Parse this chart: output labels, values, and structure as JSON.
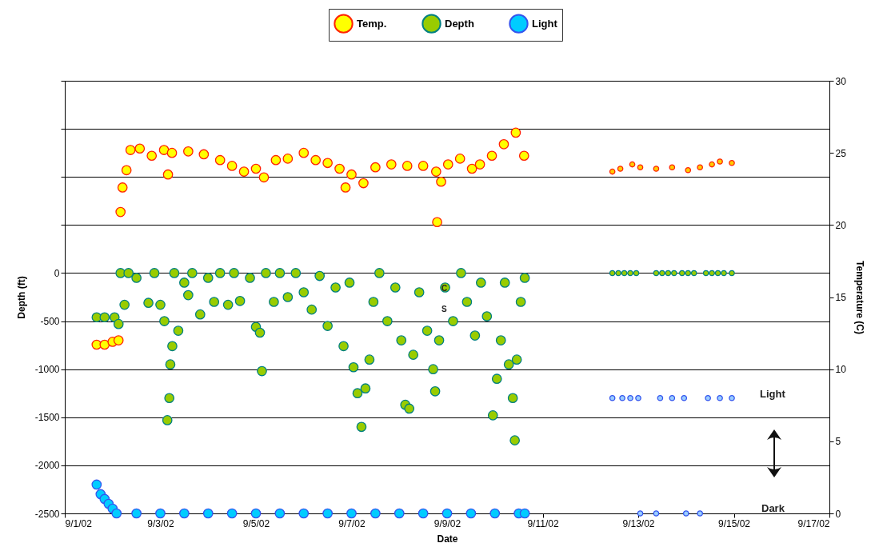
{
  "chart_data": {
    "type": "scatter",
    "xlabel": "Date",
    "ylabel": "Depth (ft)",
    "y2label": "Temperature (C)",
    "xlim": [
      "--09-01",
      "--09-17"
    ],
    "xticks": [
      {
        "value": "--09-01",
        "label": "9/1/02"
      },
      {
        "value": "--09-03",
        "label": "9/3/02"
      },
      {
        "value": "--09-05",
        "label": "9/5/02"
      },
      {
        "value": "--09-07",
        "label": "9/7/02"
      },
      {
        "value": "--09-09",
        "label": "9/9/02"
      },
      {
        "value": "--09-11",
        "label": "9/11/02"
      },
      {
        "value": "--09-13",
        "label": "9/13/02"
      },
      {
        "value": "--09-15",
        "label": "9/15/02"
      },
      {
        "value": "--09-17",
        "label": "9/17/02"
      }
    ],
    "ylim": [
      -2500,
      2000
    ],
    "yticks": [
      -2500,
      -2000,
      -1500,
      -1000,
      -500,
      0,
      {
        "value": 500,
        "label": null
      },
      {
        "value": 1000,
        "label": null
      },
      {
        "value": 1500,
        "label": null
      },
      {
        "value": 2000,
        "label": null
      }
    ],
    "y2lim": [
      0,
      30
    ],
    "y2ticks": [
      0,
      5,
      10,
      15,
      20,
      25,
      30
    ],
    "grid": "y",
    "legend": "top",
    "marker": "circle",
    "series": [
      {
        "name": "Temp.",
        "color": "#ffff00",
        "axis": "y2",
        "x": [
          "--09-01T16:00",
          "--09-01T20:00",
          "--09-02T00:00",
          "--09-02T03:00",
          "--09-02T04:00",
          "--09-02T05:00",
          "--09-02T07:00",
          "--09-02T09:00",
          "--09-02T13:40",
          "--09-02T19:40",
          "--09-03T01:50",
          "--09-03T03:50",
          "--09-03T05:50",
          "--09-03T14:00",
          "--09-03T21:50",
          "--09-04T06:00",
          "--09-04T12:00",
          "--09-04T18:00",
          "--09-05T00:00",
          "--09-05T04:00",
          "--09-05T10:00",
          "--09-05T16:00",
          "--09-06T00:00",
          "--09-06T06:00",
          "--09-06T12:00",
          "--09-06T18:00",
          "--09-06T21:00",
          "--09-07T00:00",
          "--09-07T06:00",
          "--09-07T12:00",
          "--09-07T20:00",
          "--09-08T04:00",
          "--09-08T12:00",
          "--09-08T18:30",
          "--09-08T19:00",
          "--09-08T21:00",
          "--09-09T00:30",
          "--09-09T06:30",
          "--09-09T12:30",
          "--09-09T16:30",
          "--09-09T22:30",
          "--09-10T04:30",
          "--09-10T10:30",
          "--09-10T14:40"
        ],
        "values": [
          11.7,
          11.7,
          11.9,
          12.0,
          20.9,
          22.6,
          23.8,
          25.2,
          25.3,
          24.8,
          25.2,
          23.5,
          25.0,
          25.1,
          24.9,
          24.5,
          24.1,
          23.7,
          23.9,
          23.3,
          24.5,
          24.6,
          25.0,
          24.5,
          24.3,
          23.9,
          22.6,
          23.5,
          22.9,
          24.0,
          24.2,
          24.1,
          24.1,
          23.7,
          20.2,
          23.0,
          24.2,
          24.6,
          23.9,
          24.2,
          24.8,
          25.6,
          26.4,
          24.8
        ]
      },
      {
        "color": "#ffcc00",
        "axis": "y2",
        "x": [
          "--09-12T11:00",
          "--09-12T15:00",
          "--09-12T21:00",
          "--09-13T01:00",
          "--09-13T09:00",
          "--09-13T17:00",
          "--09-14T01:00",
          "--09-14T07:00",
          "--09-14T13:00",
          "--09-14T17:00",
          "--09-14T23:00"
        ],
        "values": [
          23.7,
          23.9,
          24.2,
          24.0,
          23.9,
          24.0,
          23.8,
          24.0,
          24.2,
          24.4,
          24.3
        ]
      },
      {
        "name": "Depth",
        "color": "#99cc00",
        "x": [
          "--09-01T16:00",
          "--09-01T20:00",
          "--09-02T01:00",
          "--09-02T03:00",
          "--09-02T04:00",
          "--09-02T06:00",
          "--09-02T08:00",
          "--09-02T12:00",
          "--09-02T18:00",
          "--09-02T21:00",
          "--09-03T00:00",
          "--09-03T02:00",
          "--09-03T03:30",
          "--09-03T04:30",
          "--09-03T05:00",
          "--09-03T06:00",
          "--09-03T07:00",
          "--09-03T09:00",
          "--09-03T12:00",
          "--09-03T14:00",
          "--09-03T16:00",
          "--09-03T20:00",
          "--09-04T00:00",
          "--09-04T03:00",
          "--09-04T06:00",
          "--09-04T10:00",
          "--09-04T13:00",
          "--09-04T16:00",
          "--09-04T21:00",
          "--09-05T00:00",
          "--09-05T02:00",
          "--09-05T03:00",
          "--09-05T05:00",
          "--09-05T09:00",
          "--09-05T12:00",
          "--09-05T16:00",
          "--09-05T20:00",
          "--09-06T00:00",
          "--09-06T04:00",
          "--09-06T08:00",
          "--09-06T12:00",
          "--09-06T16:00",
          "--09-06T20:00",
          "--09-06T23:00",
          "--09-07T01:00",
          "--09-07T03:00",
          "--09-07T05:00",
          "--09-07T07:00",
          "--09-07T09:00",
          "--09-07T11:00",
          "--09-07T14:00",
          "--09-07T18:00",
          "--09-07T22:00",
          "--09-08T01:00",
          "--09-08T03:00",
          "--09-08T05:00",
          "--09-08T07:00",
          "--09-08T10:00",
          "--09-08T14:00",
          "--09-08T17:00",
          "--09-08T18:00",
          "--09-08T20:00",
          "--09-08T23:00",
          "--09-09T03:00",
          "--09-09T07:00",
          "--09-09T10:00",
          "--09-09T14:00",
          "--09-09T17:00",
          "--09-09T20:00",
          "--09-09T23:00",
          "--09-10T01:00",
          "--09-10T03:00",
          "--09-10T05:00",
          "--09-10T07:00",
          "--09-10T09:00",
          "--09-10T10:00",
          "--09-10T11:00",
          "--09-10T13:00",
          "--09-10T15:00"
        ],
        "values": [
          -460,
          -460,
          -460,
          -530,
          0,
          -330,
          0,
          -50,
          -310,
          0,
          -330,
          -500,
          -1530,
          -1300,
          -950,
          -760,
          0,
          -600,
          -100,
          -230,
          0,
          -430,
          -50,
          -300,
          0,
          -330,
          0,
          -290,
          -50,
          -560,
          -620,
          -1020,
          0,
          -300,
          0,
          -250,
          0,
          -200,
          -380,
          -30,
          -550,
          -150,
          -760,
          -100,
          -980,
          -1250,
          -1600,
          -1200,
          -900,
          -300,
          0,
          -500,
          -150,
          -700,
          -1370,
          -1410,
          -850,
          -200,
          -600,
          -1000,
          -1230,
          -700,
          -150,
          -500,
          0,
          -300,
          -650,
          -100,
          -450,
          -1480,
          -1100,
          -700,
          -100,
          -950,
          -1300,
          -1740,
          -900,
          -300,
          -50
        ]
      },
      {
        "color": "#99cc00",
        "x": [
          "--09-12T11:00",
          "--09-12T14:00",
          "--09-12T17:00",
          "--09-12T20:00",
          "--09-12T23:00",
          "--09-13T09:00",
          "--09-13T12:00",
          "--09-13T15:00",
          "--09-13T18:00",
          "--09-13T22:00",
          "--09-14T01:00",
          "--09-14T04:00",
          "--09-14T10:00",
          "--09-14T13:00",
          "--09-14T16:00",
          "--09-14T19:00",
          "--09-14T23:00"
        ],
        "values": [
          0,
          0,
          0,
          0,
          0,
          0,
          0,
          0,
          0,
          0,
          0,
          0,
          0,
          0,
          0,
          0,
          0
        ]
      },
      {
        "name": "Light",
        "color": "#00ccff",
        "x": [
          "--09-01T16:00",
          "--09-01T18:00",
          "--09-01T20:00",
          "--09-01T22:00",
          "--09-02T00:00",
          "--09-02T02:00",
          "--09-02T12:00",
          "--09-03T00:00",
          "--09-03T12:00",
          "--09-04T00:00",
          "--09-04T12:00",
          "--09-05T00:00",
          "--09-05T12:00",
          "--09-06T00:00",
          "--09-06T12:00",
          "--09-07T00:00",
          "--09-07T12:00",
          "--09-08T00:00",
          "--09-08T12:00",
          "--09-09T00:00",
          "--09-09T12:00",
          "--09-10T00:00",
          "--09-10T12:00",
          "--09-10T15:00"
        ],
        "values": [
          -2200,
          -2300,
          -2350,
          -2400,
          -2450,
          -2500,
          -2500,
          -2500,
          -2500,
          -2500,
          -2500,
          -2500,
          -2500,
          -2500,
          -2500,
          -2500,
          -2500,
          -2500,
          -2500,
          -2500,
          -2500,
          -2500,
          -2500,
          -2500
        ]
      },
      {
        "color": "#99ccff",
        "x": [
          "--09-12T11:00",
          "--09-12T16:00",
          "--09-12T20:00",
          "--09-13T00:00",
          "--09-13T01:00",
          "--09-13T09:00",
          "--09-13T11:00",
          "--09-13T17:00",
          "--09-13T23:00",
          "--09-14T00:00",
          "--09-14T07:00",
          "--09-14T11:00",
          "--09-14T17:00",
          "--09-14T23:00"
        ],
        "values": [
          -1300,
          -1300,
          -1300,
          -1300,
          -2500,
          -2500,
          -1300,
          -1300,
          -1300,
          -2500,
          -2500,
          -1300,
          -1300,
          -1300
        ]
      }
    ],
    "annotations": [
      "Light",
      "Dark",
      "C",
      "S"
    ]
  }
}
